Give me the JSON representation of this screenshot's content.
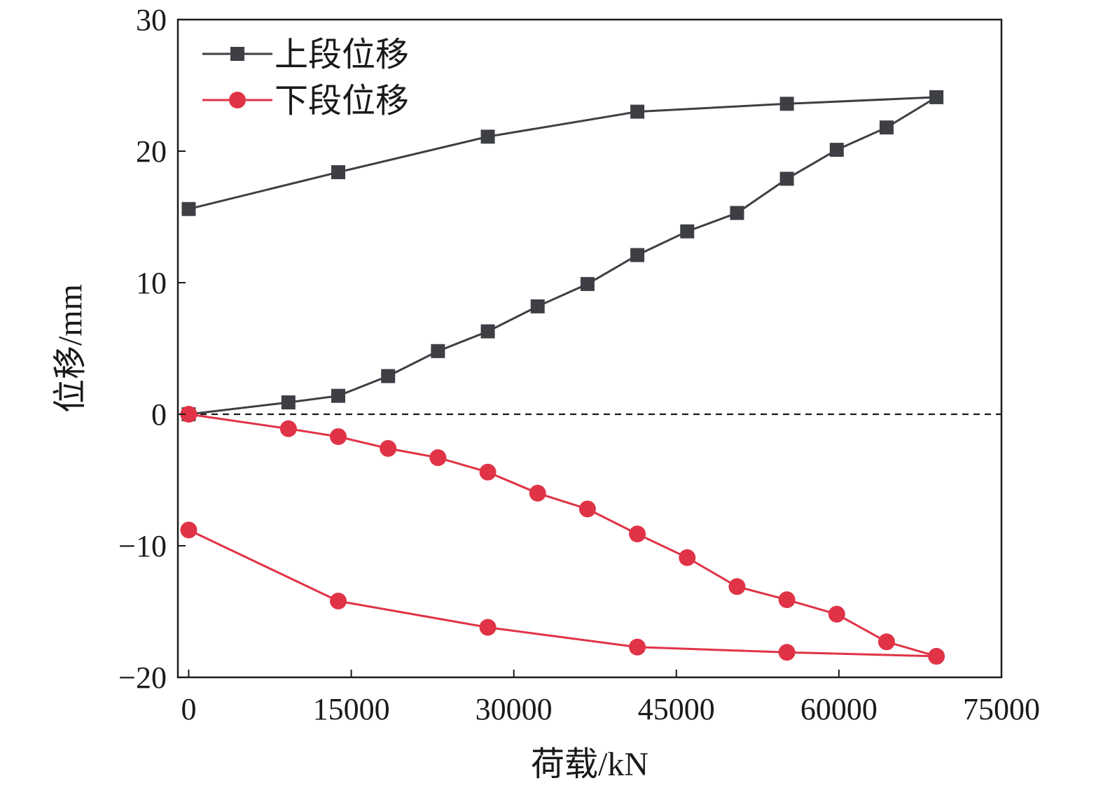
{
  "chart_data": {
    "type": "line",
    "title": "",
    "xlabel": "荷载/kN",
    "ylabel": "位移/mm",
    "xlim": [
      -1000,
      75000
    ],
    "ylim": [
      -20,
      30
    ],
    "xticks": [
      0,
      15000,
      30000,
      45000,
      60000,
      75000
    ],
    "yticks": [
      -20,
      -10,
      0,
      10,
      20,
      30
    ],
    "xtick_labels": [
      "0",
      "15000",
      "30000",
      "45000",
      "60000",
      "75000"
    ],
    "ytick_labels": [
      "−20",
      "−10",
      "0",
      "10",
      "20",
      "30"
    ],
    "reference_line": {
      "y": 0,
      "style": "dashed"
    },
    "legend_position": "top-left",
    "series": [
      {
        "name": "上段位移",
        "marker": "square",
        "color": "#3d3f45",
        "points": [
          [
            0,
            0
          ],
          [
            9200,
            0.9
          ],
          [
            13800,
            1.4
          ],
          [
            18400,
            2.9
          ],
          [
            23000,
            4.8
          ],
          [
            27600,
            6.3
          ],
          [
            32200,
            8.2
          ],
          [
            36800,
            9.9
          ],
          [
            41400,
            12.1
          ],
          [
            46000,
            13.9
          ],
          [
            50600,
            15.3
          ],
          [
            55200,
            17.9
          ],
          [
            59800,
            20.1
          ],
          [
            64400,
            21.8
          ],
          [
            69000,
            24.1
          ],
          [
            55200,
            23.6
          ],
          [
            41400,
            23.0
          ],
          [
            27600,
            21.1
          ],
          [
            13800,
            18.4
          ],
          [
            0,
            15.6
          ]
        ]
      },
      {
        "name": "下段位移",
        "marker": "circle",
        "color": "#e03346",
        "points": [
          [
            0,
            0
          ],
          [
            9200,
            -1.1
          ],
          [
            13800,
            -1.7
          ],
          [
            18400,
            -2.6
          ],
          [
            23000,
            -3.3
          ],
          [
            27600,
            -4.4
          ],
          [
            32200,
            -6.0
          ],
          [
            36800,
            -7.2
          ],
          [
            41400,
            -9.1
          ],
          [
            46000,
            -10.9
          ],
          [
            50600,
            -13.1
          ],
          [
            55200,
            -14.1
          ],
          [
            59800,
            -15.2
          ],
          [
            64400,
            -17.3
          ],
          [
            69000,
            -18.4
          ],
          [
            55200,
            -18.1
          ],
          [
            41400,
            -17.7
          ],
          [
            27600,
            -16.2
          ],
          [
            13800,
            -14.2
          ],
          [
            0,
            -8.8
          ]
        ]
      }
    ]
  }
}
